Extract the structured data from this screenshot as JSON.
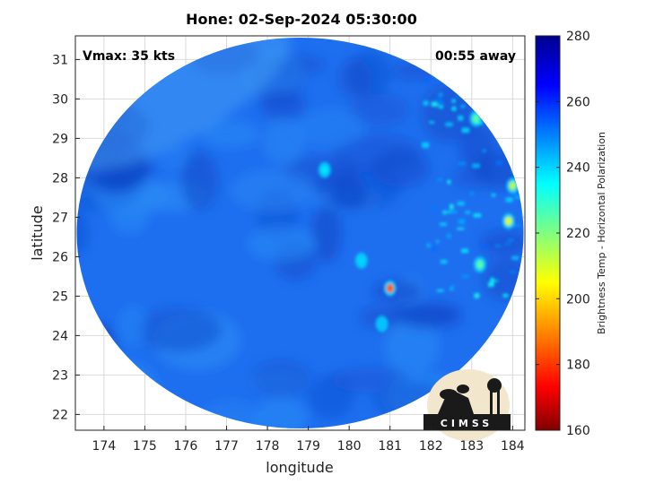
{
  "title": "Hone: 02-Sep-2024 05:30:00",
  "vmax_label": "Vmax: 35 kts",
  "time_away_label": "00:55 away",
  "logo_text": "CIMSS",
  "colors": {
    "frame": "#222222",
    "grid": "#d9d9d9",
    "disk_base": "#1e6ff0",
    "disk_dark": "#1048c8",
    "disk_light": "#2a8cf5",
    "logo_bg": "#f2e6cc",
    "logo_dark": "#1a1a1a"
  },
  "colormap": {
    "name": "jet",
    "stops": [
      "#800000",
      "#ff0000",
      "#ffff00",
      "#00ffff",
      "#0000ff",
      "#00008f"
    ]
  },
  "chart_data": {
    "type": "heatmap",
    "title": "Hone: 02-Sep-2024 05:30:00",
    "xlabel": "longitude",
    "ylabel": "latitude",
    "xlim": [
      173.3,
      184.3
    ],
    "ylim": [
      21.6,
      31.6
    ],
    "x_ticks": [
      174,
      175,
      176,
      177,
      178,
      179,
      180,
      181,
      182,
      183,
      184
    ],
    "y_ticks": [
      22,
      23,
      24,
      25,
      26,
      27,
      28,
      29,
      30,
      31
    ],
    "grid": true,
    "swath_center": {
      "lon": 178.8,
      "lat": 26.6
    },
    "warm_cold_features": [
      {
        "lon": 181.0,
        "lat": 25.2,
        "value": 185
      },
      {
        "lon": 184.0,
        "lat": 27.8,
        "value": 215
      },
      {
        "lon": 183.9,
        "lat": 26.9,
        "value": 210
      },
      {
        "lon": 183.2,
        "lat": 25.8,
        "value": 225
      },
      {
        "lon": 183.1,
        "lat": 29.5,
        "value": 225
      },
      {
        "lon": 179.4,
        "lat": 28.2,
        "value": 238
      },
      {
        "lon": 180.3,
        "lat": 25.9,
        "value": 240
      },
      {
        "lon": 180.8,
        "lat": 24.3,
        "value": 242
      }
    ],
    "colorbar": {
      "label": "Brightness Temp - Horizontal Polarization",
      "min": 160,
      "max": 280,
      "ticks": [
        160,
        180,
        200,
        220,
        240,
        260,
        280
      ]
    }
  }
}
